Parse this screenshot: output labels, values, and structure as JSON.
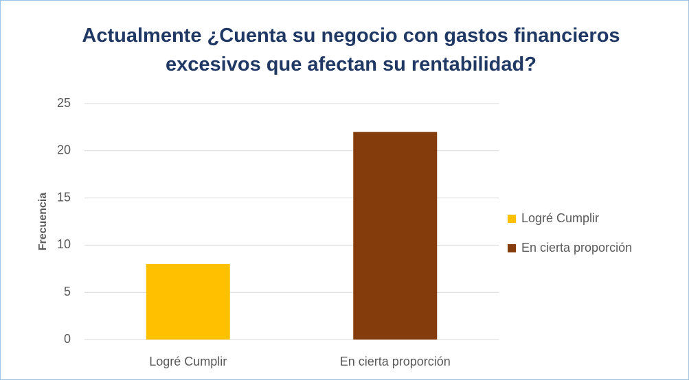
{
  "chart_data": {
    "type": "bar",
    "title": "Actualmente ¿Cuenta su negocio con gastos financieros excesivos que afectan su rentabilidad?",
    "y_label": "Frecuencia",
    "categories": [
      "Logré Cumplir",
      "En cierta proporción"
    ],
    "values": [
      8,
      22
    ],
    "colors": [
      "#ffc000",
      "#843c0c"
    ],
    "ylim": [
      0,
      25
    ],
    "yticks": [
      0,
      5,
      10,
      15,
      20,
      25
    ],
    "grid": true,
    "legend": "right"
  }
}
